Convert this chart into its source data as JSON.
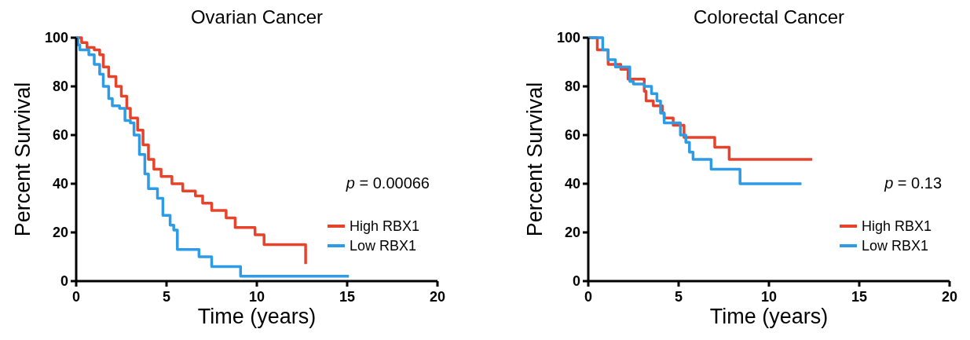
{
  "chart_data": [
    {
      "type": "step",
      "title": "Ovarian Cancer",
      "xlabel": "Time (years)",
      "ylabel": "Percent Survival",
      "xlim": [
        0,
        20
      ],
      "xticks": [
        0,
        5,
        10,
        15,
        20
      ],
      "ylim": [
        0,
        100
      ],
      "yticks": [
        0,
        20,
        40,
        60,
        80,
        100
      ],
      "legend": "bottom right",
      "annotations": [
        "p = 0.00066"
      ],
      "series": [
        {
          "name": "High RBX1",
          "color": "#e8432a",
          "x": [
            0,
            0.3,
            0.6,
            1.0,
            1.3,
            1.5,
            1.8,
            2.2,
            2.5,
            2.8,
            3.0,
            3.4,
            3.7,
            4.0,
            4.3,
            4.7,
            5.3,
            5.9,
            6.6,
            7.0,
            7.5,
            8.3,
            8.8,
            9.9,
            10.4,
            12.7,
            12.7
          ],
          "values": [
            100,
            98,
            96,
            95,
            93,
            88,
            84,
            80,
            76,
            71,
            67,
            62,
            56,
            50,
            46,
            43,
            40,
            37,
            35,
            32,
            29,
            26,
            22,
            19,
            15,
            15,
            7
          ]
        },
        {
          "name": "Low RBX1",
          "color": "#2d9be6",
          "x": [
            0,
            0.1,
            0.2,
            0.7,
            1.0,
            1.3,
            1.5,
            1.8,
            2.0,
            2.4,
            2.7,
            3.0,
            3.2,
            3.5,
            3.8,
            4.0,
            4.5,
            4.8,
            5.2,
            5.4,
            5.6,
            6.8,
            7.5,
            9.1,
            15.1
          ],
          "values": [
            100,
            97,
            95,
            93,
            89,
            85,
            80,
            75,
            72,
            71,
            66,
            65,
            60,
            52,
            44,
            38,
            34,
            27,
            23,
            21,
            13,
            10,
            6,
            2,
            2
          ]
        }
      ]
    },
    {
      "type": "step",
      "title": "Colorectal Cancer",
      "xlabel": "Time (years)",
      "ylabel": "Percent Survival",
      "xlim": [
        0,
        20
      ],
      "xticks": [
        0,
        5,
        10,
        15,
        20
      ],
      "ylim": [
        0,
        100
      ],
      "yticks": [
        0,
        20,
        40,
        60,
        80,
        100
      ],
      "legend": "bottom right",
      "annotations": [
        "p = 0.13"
      ],
      "series": [
        {
          "name": "High RBX1",
          "color": "#e8432a",
          "x": [
            0,
            0.5,
            1.1,
            1.8,
            2.2,
            2.7,
            3.1,
            3.2,
            3.6,
            4.1,
            4.2,
            4.7,
            5.3,
            7.0,
            7.8,
            12.4
          ],
          "values": [
            100,
            95,
            89,
            87,
            83,
            83,
            78,
            74,
            72,
            69,
            67,
            64,
            59,
            55,
            50,
            50
          ]
        },
        {
          "name": "Low RBX1",
          "color": "#2d9be6",
          "x": [
            0,
            0.8,
            1.1,
            1.5,
            2.3,
            2.5,
            3.1,
            3.5,
            3.8,
            4.0,
            4.2,
            5.1,
            5.4,
            5.6,
            5.8,
            6.8,
            8.4,
            11.8
          ],
          "values": [
            100,
            95,
            91,
            88,
            82,
            81,
            80,
            77,
            74,
            69,
            65,
            60,
            57,
            53,
            50,
            46,
            40,
            40
          ]
        }
      ]
    }
  ]
}
